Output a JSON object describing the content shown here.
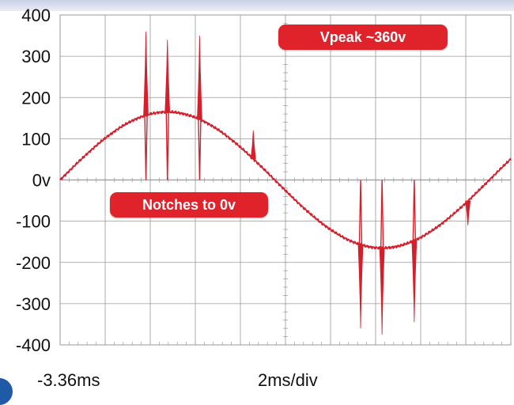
{
  "chart_data": {
    "type": "line",
    "ylim": [
      -400,
      400
    ],
    "yticks": [
      400,
      300,
      200,
      100,
      0,
      -100,
      -200,
      -300,
      -400
    ],
    "ytick_labels": [
      "400",
      "300",
      "200",
      "100",
      "0v",
      "-100",
      "-200",
      "-300",
      "-400"
    ],
    "x_start_label": "-3.36ms",
    "x_scale_label": "2ms/div",
    "xlim": [
      -3.36,
      17.64
    ],
    "waveform": {
      "name": "",
      "amplitude": 165,
      "period_ms": 20,
      "phase_start_ms": -3.36,
      "notches": [
        {
          "t": 0.64,
          "to": 0
        },
        {
          "t": 1.64,
          "to": 0
        },
        {
          "t": 3.14,
          "to": 0
        },
        {
          "t": 10.64,
          "to": 0
        },
        {
          "t": 11.64,
          "to": 0
        },
        {
          "t": 13.14,
          "to": 0
        }
      ],
      "spikes": [
        {
          "t": 0.64,
          "to": 360
        },
        {
          "t": 1.64,
          "to": 340
        },
        {
          "t": 3.14,
          "to": 350
        },
        {
          "t": 5.64,
          "to": 120
        },
        {
          "t": 10.64,
          "to": -360
        },
        {
          "t": 11.64,
          "to": -375
        },
        {
          "t": 13.14,
          "to": -345
        },
        {
          "t": 15.64,
          "to": -110
        }
      ]
    },
    "annotations": [
      {
        "text": "Vpeak ~360v"
      },
      {
        "text": "Notches to 0v"
      }
    ],
    "colors": {
      "trace": "#d4202c",
      "callout": "#e0222b",
      "grid": "#9a9a9a",
      "axis": "#888888"
    }
  }
}
